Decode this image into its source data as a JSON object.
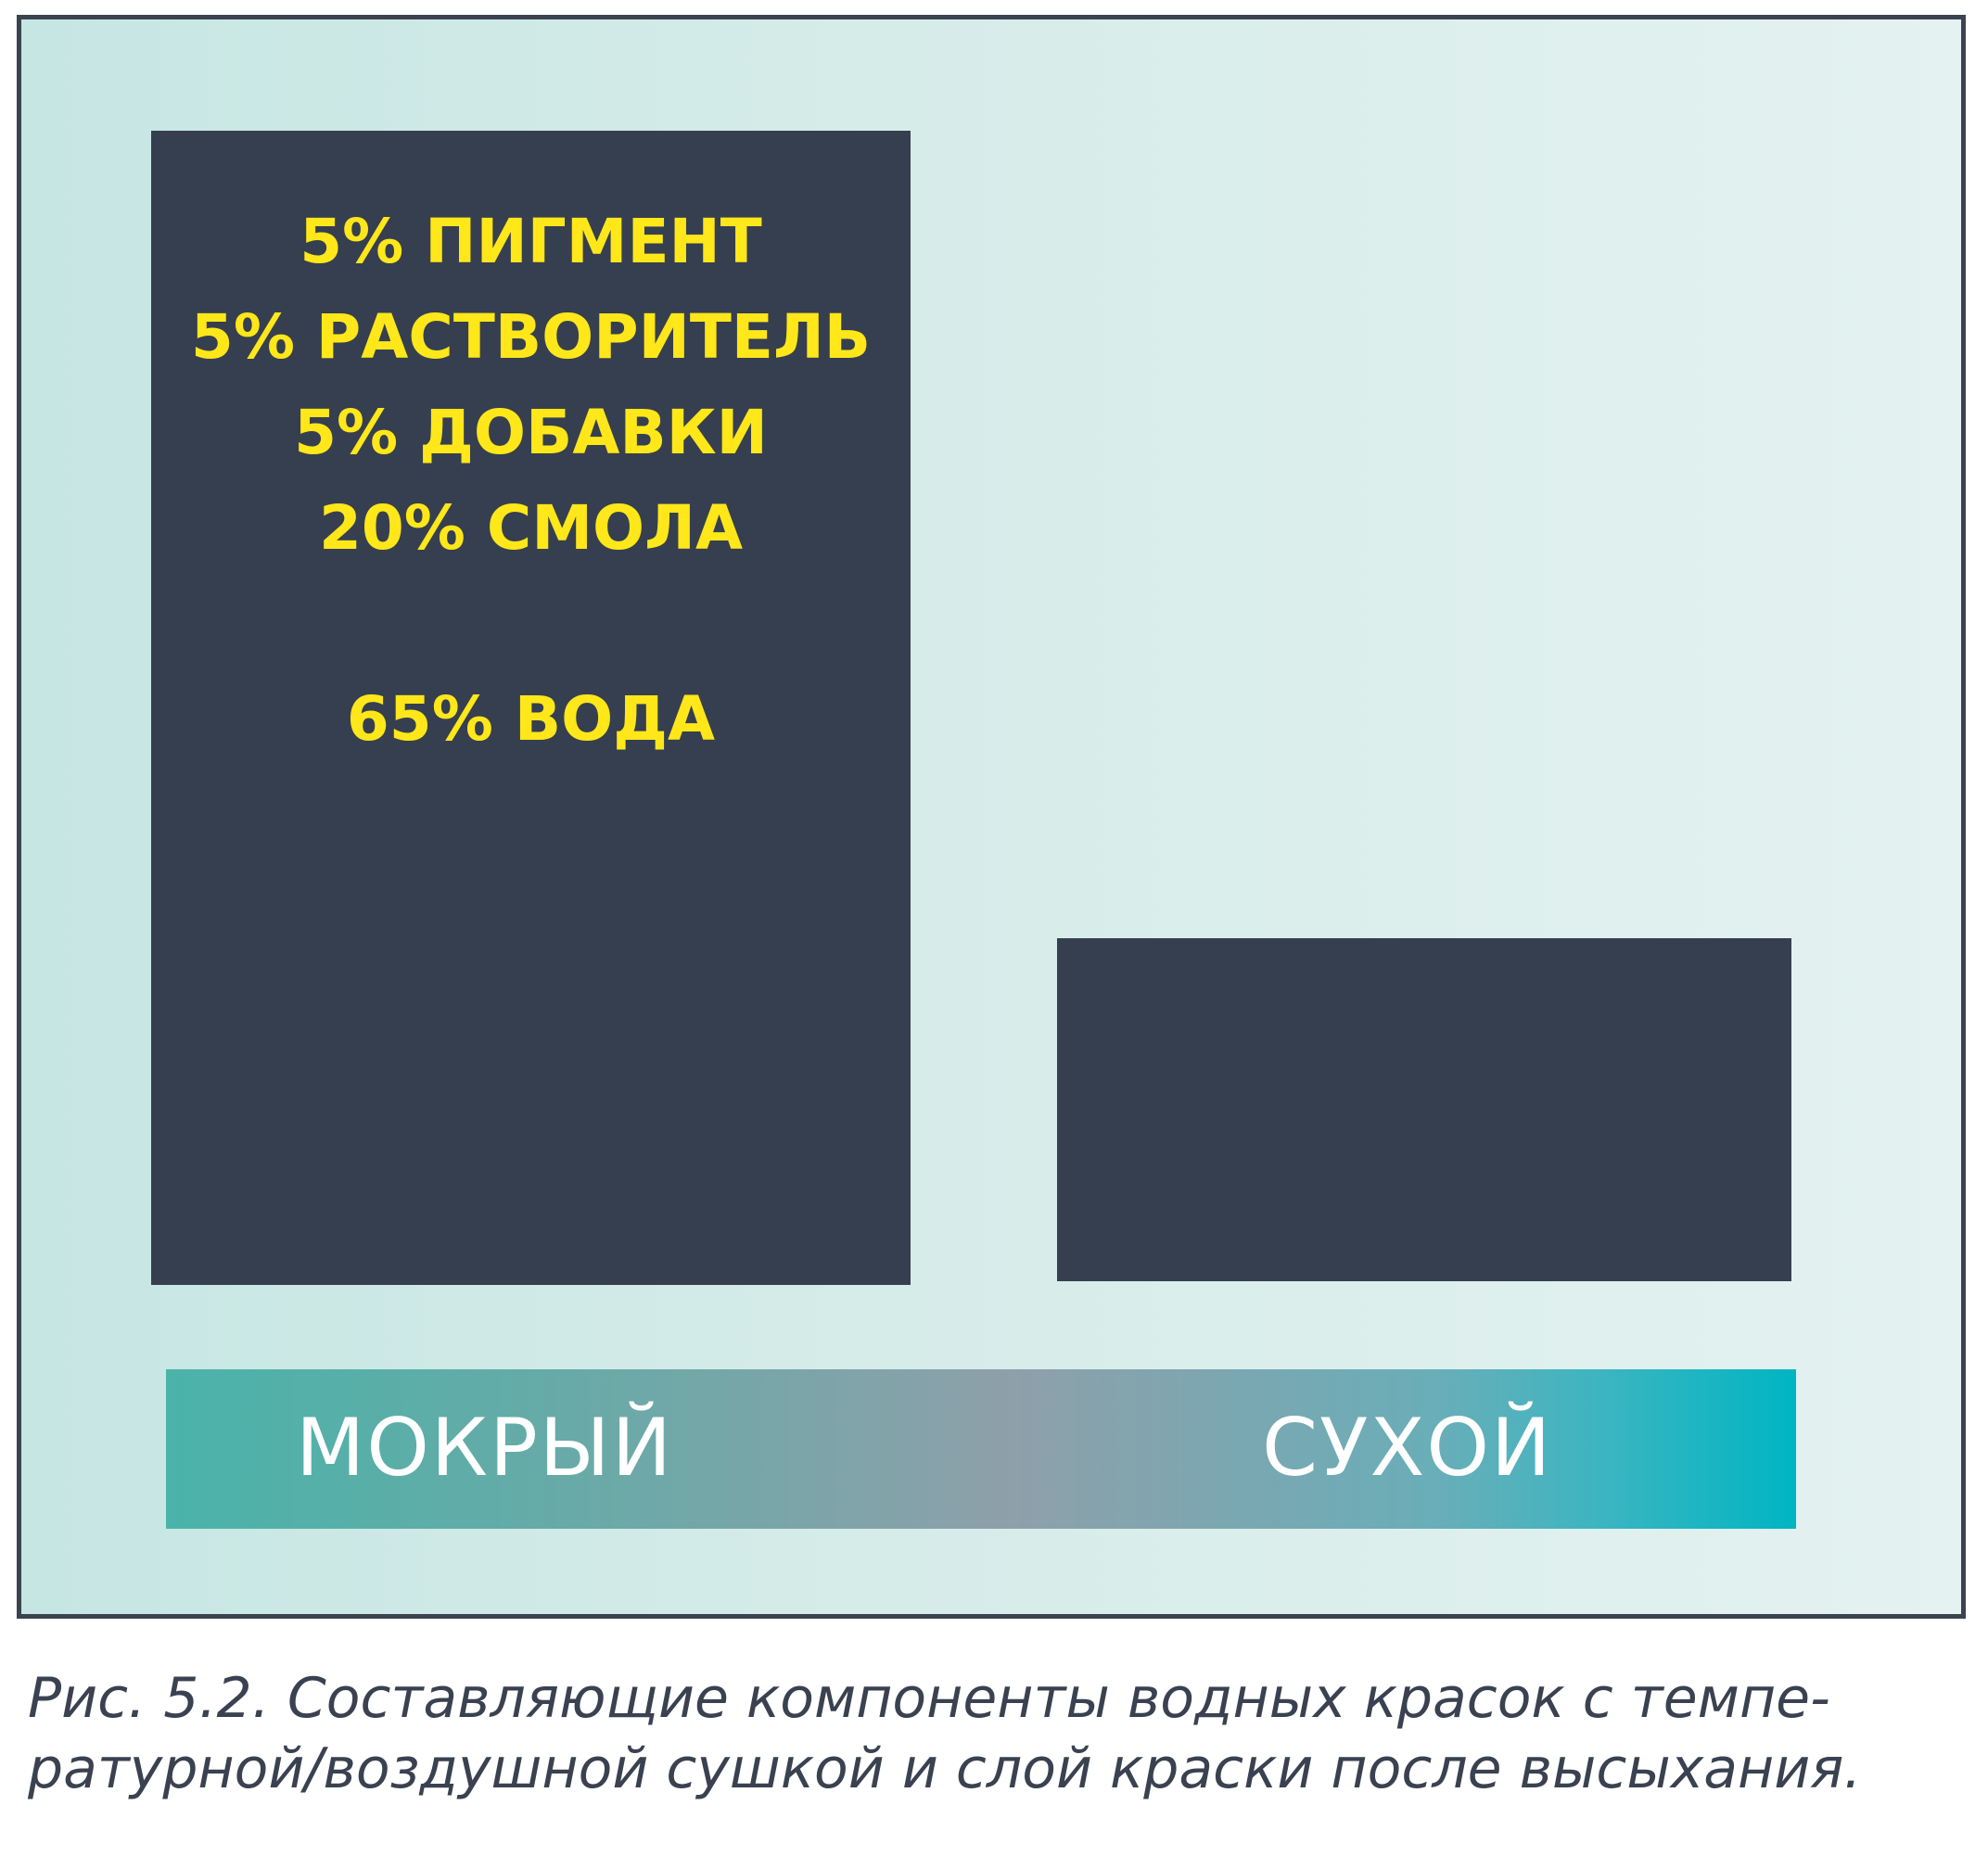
{
  "diagram": {
    "wet_layer": {
      "components": [
        "5% ПИГМЕНТ",
        "5% РАСТВОРИТЕЛЬ",
        "5% ДОБАВКИ",
        "20% СМОЛА",
        "65% ВОДА"
      ]
    },
    "state_bar": {
      "wet_label": "МОКРЫЙ",
      "dry_label": "СУХОЙ"
    },
    "colors": {
      "frame_border": "#3b4350",
      "layer_fill": "#363f4f",
      "component_text": "#ffe71a",
      "state_label_text": "#ffffff",
      "bar_start": "#4ab3aa",
      "bar_middle": "#8ea0aa",
      "bar_end": "#00b5c2"
    }
  },
  "caption": {
    "line1": "Рис. 5.2. Составляющие компоненты водных красок с темпе-",
    "line2": "ратурной/воздушной сушкой и слой краски после высыхания."
  }
}
